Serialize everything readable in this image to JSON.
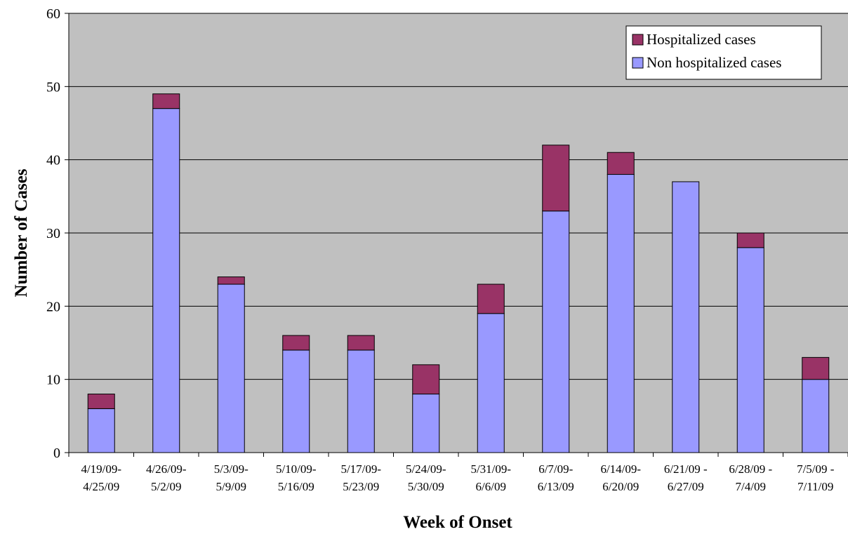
{
  "chart_data": {
    "type": "bar",
    "stacked": true,
    "title": "",
    "xlabel": "Week of Onset",
    "ylabel": "Number of Cases",
    "ylim": [
      0,
      60
    ],
    "yticks": [
      0,
      10,
      20,
      30,
      40,
      50,
      60
    ],
    "grid": true,
    "legend_position": "top-right",
    "categories": [
      [
        "4/19/09-",
        "4/25/09"
      ],
      [
        "4/26/09-",
        "5/2/09"
      ],
      [
        "5/3/09-",
        "5/9/09"
      ],
      [
        "5/10/09-",
        "5/16/09"
      ],
      [
        "5/17/09-",
        "5/23/09"
      ],
      [
        "5/24/09-",
        "5/30/09"
      ],
      [
        "5/31/09-",
        "6/6/09"
      ],
      [
        "6/7/09-",
        "6/13/09"
      ],
      [
        "6/14/09-",
        "6/20/09"
      ],
      [
        "6/21/09 -",
        "6/27/09"
      ],
      [
        "6/28/09 -",
        "7/4/09"
      ],
      [
        "7/5/09 -",
        "7/11/09"
      ]
    ],
    "series": [
      {
        "name": "Non hospitalized cases",
        "color": "#9999ff",
        "values": [
          6,
          47,
          23,
          14,
          14,
          8,
          19,
          33,
          38,
          37,
          28,
          10
        ]
      },
      {
        "name": "Hospitalized cases",
        "color": "#993366",
        "values": [
          2,
          2,
          1,
          2,
          2,
          4,
          4,
          9,
          3,
          0,
          2,
          3
        ]
      }
    ],
    "legend_order": [
      1,
      0
    ],
    "plot_background": "#c0c0c0"
  }
}
